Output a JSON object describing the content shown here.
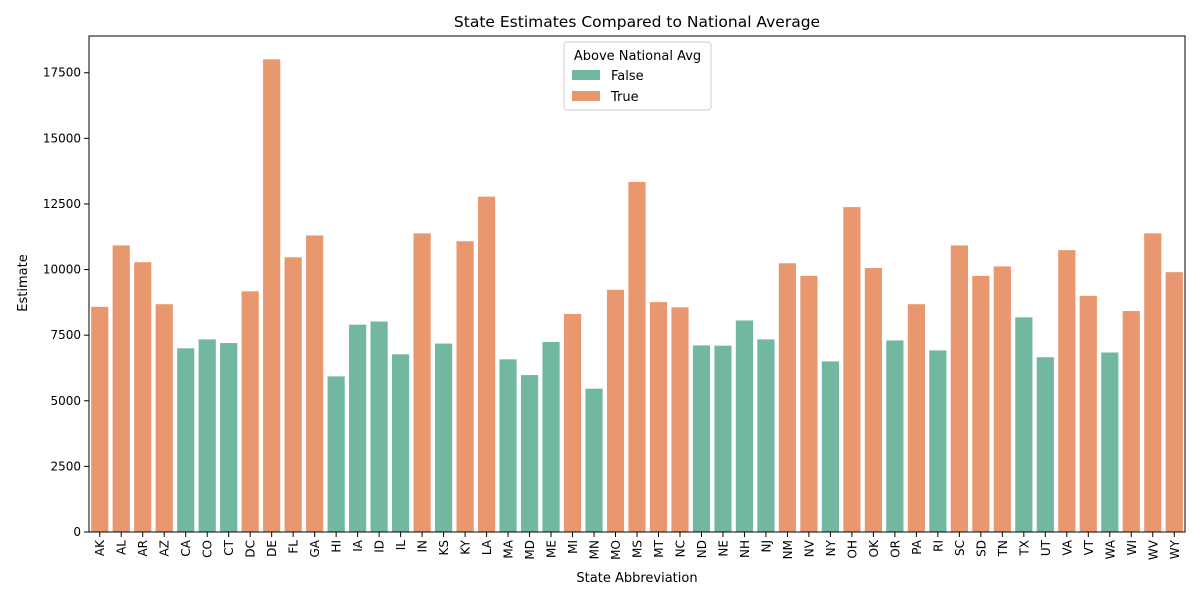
{
  "chart_data": {
    "type": "bar",
    "title": "State Estimates Compared to National Average",
    "xlabel": "State Abbreviation",
    "ylabel": "Estimate",
    "ylim": [
      0,
      18900
    ],
    "yticks": [
      0,
      2500,
      5000,
      7500,
      10000,
      12500,
      15000,
      17500
    ],
    "grid": false,
    "legend": {
      "title": "Above National Avg",
      "placement": "top-center",
      "entries": [
        {
          "label": "False",
          "color": "#72b8a1"
        },
        {
          "label": "True",
          "color": "#e9976f"
        }
      ]
    },
    "colors": {
      "False": "#72b8a1",
      "True": "#e9976f"
    },
    "categories": [
      "AK",
      "AL",
      "AR",
      "AZ",
      "CA",
      "CO",
      "CT",
      "DC",
      "DE",
      "FL",
      "GA",
      "HI",
      "IA",
      "ID",
      "IL",
      "IN",
      "KS",
      "KY",
      "LA",
      "MA",
      "MD",
      "ME",
      "MI",
      "MN",
      "MO",
      "MS",
      "MT",
      "NC",
      "ND",
      "NE",
      "NH",
      "NJ",
      "NM",
      "NV",
      "NY",
      "OH",
      "OK",
      "OR",
      "PA",
      "RI",
      "SC",
      "SD",
      "TN",
      "TX",
      "UT",
      "VA",
      "VT",
      "WA",
      "WI",
      "WV",
      "WY"
    ],
    "values": [
      8580,
      10920,
      10280,
      8680,
      7000,
      7340,
      7200,
      9170,
      18010,
      10470,
      11300,
      5930,
      7900,
      8020,
      6770,
      11380,
      7180,
      11080,
      12780,
      6580,
      5980,
      7240,
      8310,
      5460,
      9230,
      13340,
      8760,
      8560,
      7110,
      7100,
      8060,
      7340,
      10240,
      9760,
      6500,
      12380,
      10060,
      7300,
      8680,
      6920,
      10920,
      9760,
      10120,
      8180,
      6660,
      10740,
      9000,
      6840,
      8420,
      11380,
      9900
    ],
    "above_national_avg": [
      true,
      true,
      true,
      true,
      false,
      false,
      false,
      true,
      true,
      true,
      true,
      false,
      false,
      false,
      false,
      true,
      false,
      true,
      true,
      false,
      false,
      false,
      true,
      false,
      true,
      true,
      true,
      true,
      false,
      false,
      false,
      false,
      true,
      true,
      false,
      true,
      true,
      false,
      true,
      false,
      true,
      true,
      true,
      false,
      false,
      true,
      true,
      false,
      true,
      true,
      true
    ]
  }
}
